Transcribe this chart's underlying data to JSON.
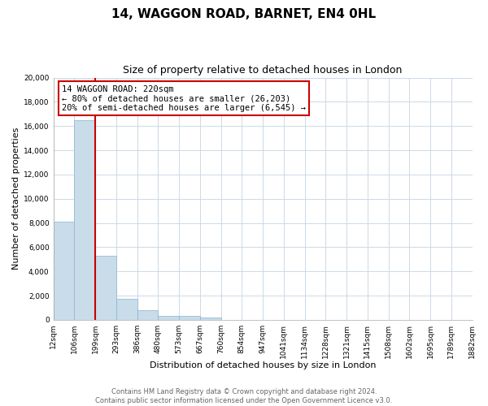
{
  "title": "14, WAGGON ROAD, BARNET, EN4 0HL",
  "subtitle": "Size of property relative to detached houses in London",
  "xlabel": "Distribution of detached houses by size in London",
  "ylabel": "Number of detached properties",
  "bin_labels": [
    "12sqm",
    "106sqm",
    "199sqm",
    "293sqm",
    "386sqm",
    "480sqm",
    "573sqm",
    "667sqm",
    "760sqm",
    "854sqm",
    "947sqm",
    "1041sqm",
    "1134sqm",
    "1228sqm",
    "1321sqm",
    "1415sqm",
    "1508sqm",
    "1602sqm",
    "1695sqm",
    "1789sqm",
    "1882sqm"
  ],
  "bar_values": [
    8100,
    16500,
    5300,
    1750,
    800,
    300,
    300,
    200,
    0,
    0,
    0,
    0,
    0,
    0,
    0,
    0,
    0,
    0,
    0,
    0
  ],
  "bar_color": "#c8dcea",
  "bar_edge_color": "#8ab4cc",
  "vline_x": 2,
  "vline_color": "#cc0000",
  "ylim": [
    0,
    20000
  ],
  "yticks": [
    0,
    2000,
    4000,
    6000,
    8000,
    10000,
    12000,
    14000,
    16000,
    18000,
    20000
  ],
  "annotation_title": "14 WAGGON ROAD: 220sqm",
  "annotation_line1": "← 80% of detached houses are smaller (26,203)",
  "annotation_line2": "20% of semi-detached houses are larger (6,545) →",
  "footer_line1": "Contains HM Land Registry data © Crown copyright and database right 2024.",
  "footer_line2": "Contains public sector information licensed under the Open Government Licence v3.0.",
  "background_color": "#ffffff",
  "grid_color": "#ccd9e6",
  "title_fontsize": 11,
  "subtitle_fontsize": 9,
  "axis_label_fontsize": 8,
  "tick_fontsize": 6.5,
  "footer_fontsize": 6,
  "annotation_fontsize": 7.5,
  "annotation_box_color": "#ffffff",
  "annotation_box_edge": "#cc0000"
}
